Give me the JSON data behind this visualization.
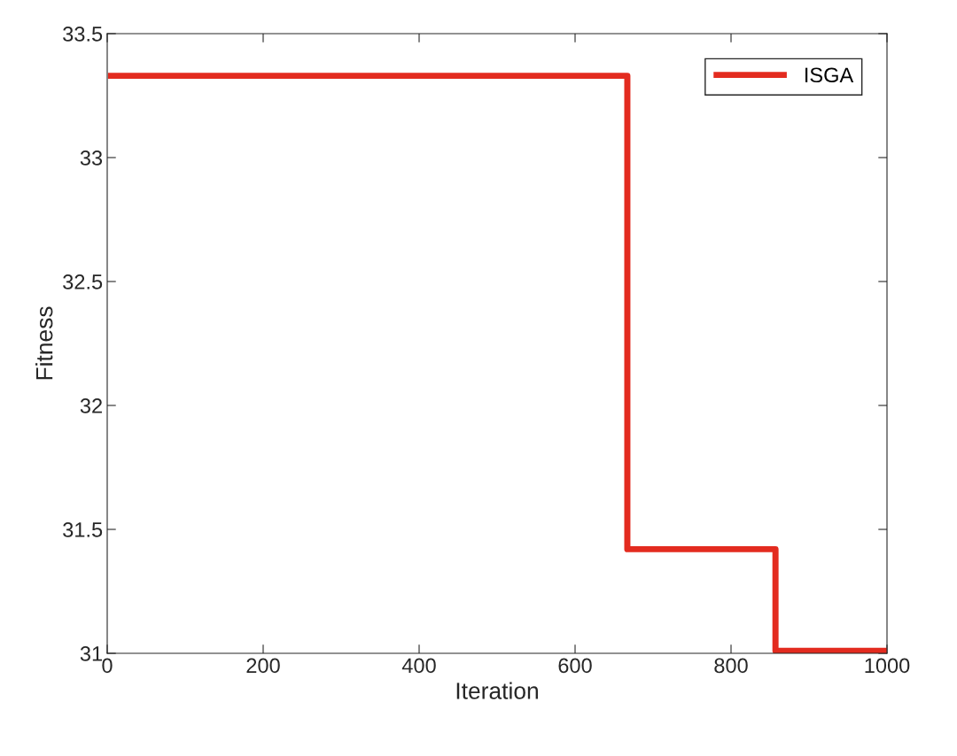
{
  "chart_data": {
    "type": "line",
    "xlabel": "Iteration",
    "ylabel": "Fitness",
    "x": [
      1,
      667,
      667,
      857,
      857,
      1000
    ],
    "series": [
      {
        "name": "ISGA",
        "color": "#e32b1f",
        "values": [
          33.33,
          33.33,
          31.42,
          31.42,
          31.01,
          31.01
        ]
      }
    ],
    "xlim": [
      0,
      1000
    ],
    "xticks": [
      0,
      200,
      400,
      600,
      800,
      1000
    ],
    "ylim": [
      31,
      33.5
    ],
    "yticks": [
      31,
      31.5,
      32,
      32.5,
      33,
      33.5
    ],
    "grid": false,
    "legend": "top right",
    "line_style": "solid",
    "marker": "none"
  }
}
